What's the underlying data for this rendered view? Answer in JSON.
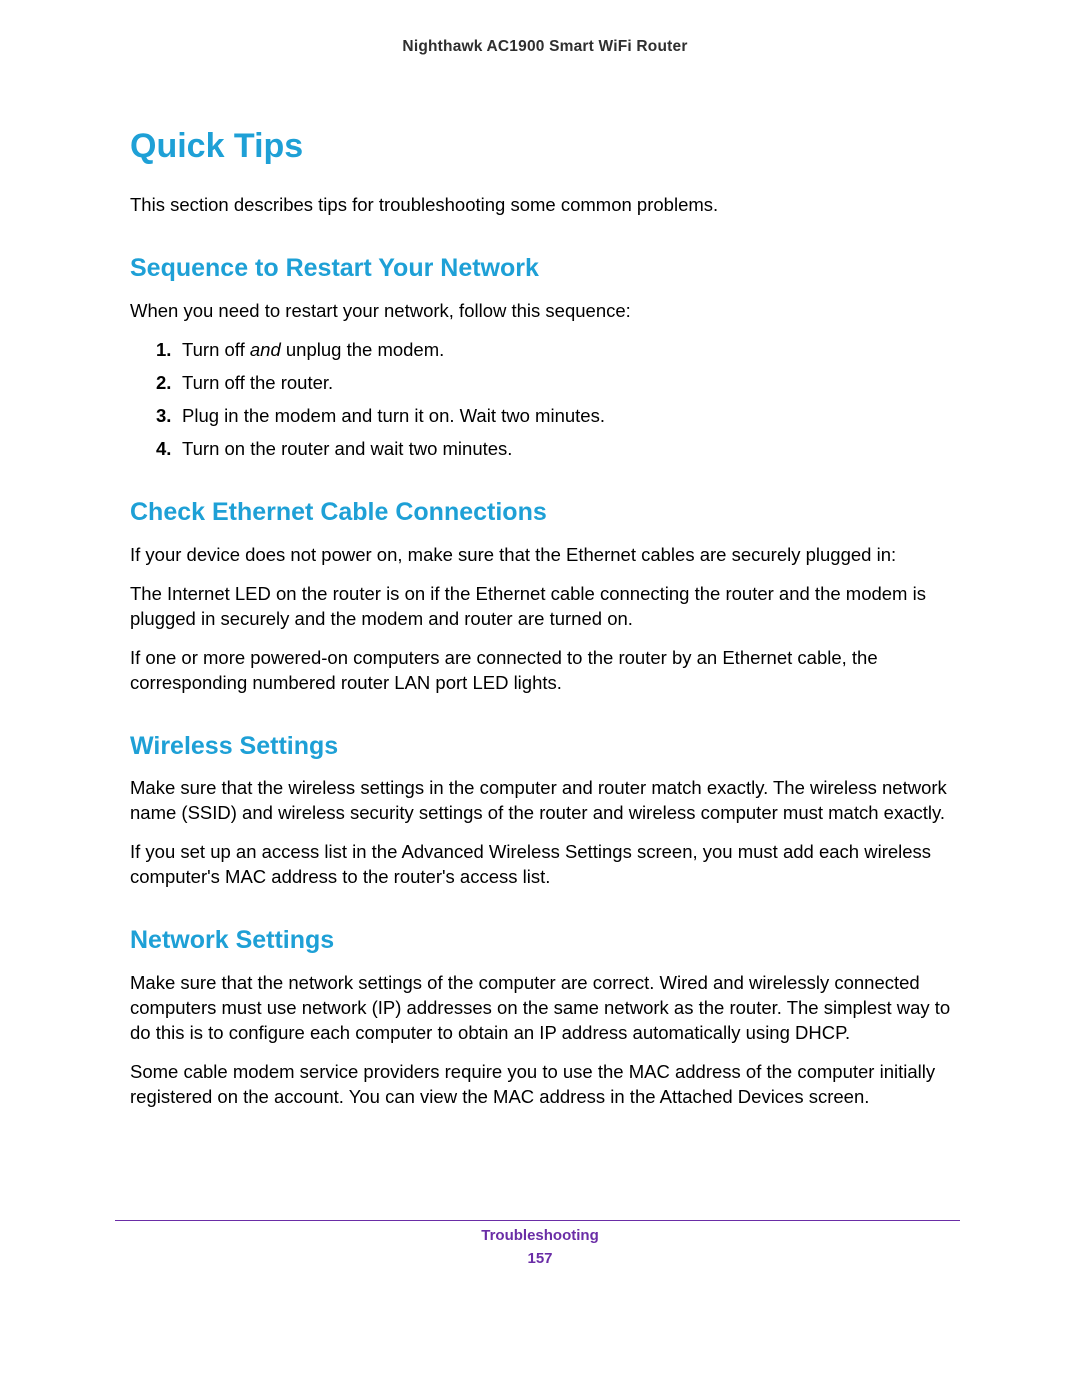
{
  "colors": {
    "heading_blue": "#1ea0d6",
    "footer_accent": "#6a2da6",
    "body_text": "#000000",
    "header_gray": "#2f2f2f",
    "page_bg": "#ffffff",
    "footer_rule": "#6a2da6"
  },
  "typography": {
    "h1_fontsize_pt": 26,
    "h2_fontsize_pt": 19,
    "body_fontsize_pt": 14,
    "header_fontsize_pt": 12,
    "footer_fontsize_pt": 11
  },
  "header": {
    "product": "Nighthawk AC1900 Smart WiFi Router"
  },
  "title": "Quick Tips",
  "intro": "This section describes tips for troubleshooting some common problems.",
  "sections": {
    "restart": {
      "heading": "Sequence to Restart Your Network",
      "lead": "When you need to restart your network, follow this sequence:",
      "steps": [
        {
          "n": "1.",
          "pre": "Turn off ",
          "em": "and",
          "post": " unplug the modem."
        },
        {
          "n": "2.",
          "text": "Turn off the router."
        },
        {
          "n": "3.",
          "text": "Plug in the modem and turn it on. Wait two minutes."
        },
        {
          "n": "4.",
          "text": "Turn on the router and wait two minutes."
        }
      ]
    },
    "ethernet": {
      "heading": "Check Ethernet Cable Connections",
      "paragraphs": [
        "If your device does not power on, make sure that the Ethernet cables are securely plugged in:",
        "The Internet LED on the router is on if the Ethernet cable connecting the router and the modem is plugged in securely and the modem and router are turned on.",
        "If one or more powered-on computers are connected to the router by an Ethernet cable, the corresponding numbered router LAN port LED lights."
      ]
    },
    "wireless": {
      "heading": "Wireless Settings",
      "paragraphs": [
        "Make sure that the wireless settings in the computer and router match exactly. The wireless network name (SSID) and wireless security settings of the router and wireless computer must match exactly.",
        "If you set up an access list in the Advanced Wireless Settings screen, you must add each wireless computer's MAC address to the router's access list."
      ]
    },
    "network": {
      "heading": "Network Settings",
      "paragraphs": [
        "Make sure that the network settings of the computer are correct. Wired and wirelessly connected computers must use network (IP) addresses on the same network as the router. The simplest way to do this is to configure each computer to obtain an IP address automatically using DHCP.",
        "Some cable modem service providers require you to use the MAC address of the computer initially registered on the account. You can view the MAC address in the Attached Devices screen."
      ]
    }
  },
  "footer": {
    "section": "Troubleshooting",
    "page": "157"
  }
}
